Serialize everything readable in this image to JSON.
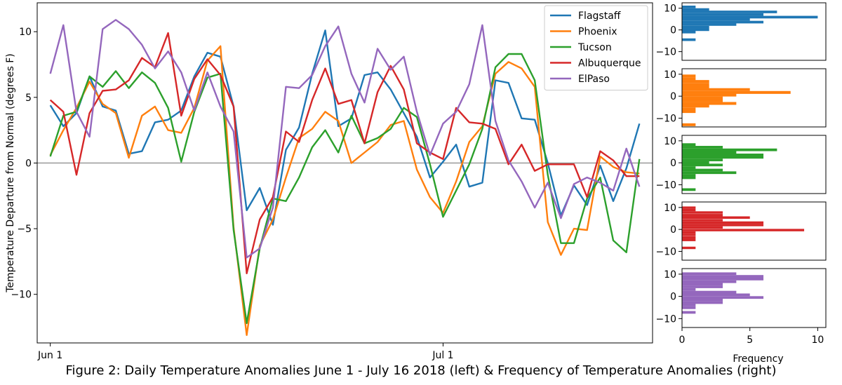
{
  "caption": "Figure 2: Daily Temperature Anomalies June 1 - July 16 2018 (left) & Frequency of Temperature Anomalies (right)",
  "chart_data": [
    {
      "type": "line",
      "title": "",
      "xlabel": "",
      "ylabel": "Temperature Departure from Normal (degrees F)",
      "x_tick_labels": [
        {
          "label": "Jun 1",
          "day": 0
        },
        {
          "label": "Jul 1",
          "day": 30
        }
      ],
      "x_range": [
        -1,
        46
      ],
      "ylim": [
        -13.7,
        12.2
      ],
      "y_ticks": [
        -10,
        -5,
        0,
        5,
        10
      ],
      "grid": false,
      "legend_position": "top-right",
      "colors": {
        "Flagstaff": "#1f77b4",
        "Phoenix": "#ff7f0e",
        "Tucson": "#2ca02c",
        "Albuquerque": "#d62728",
        "ElPaso": "#9467bd"
      },
      "x": [
        0,
        1,
        2,
        3,
        4,
        5,
        6,
        7,
        8,
        9,
        10,
        11,
        12,
        13,
        14,
        15,
        16,
        17,
        18,
        19,
        20,
        21,
        22,
        23,
        24,
        25,
        26,
        27,
        28,
        29,
        30,
        31,
        32,
        33,
        34,
        35,
        36,
        37,
        38,
        39,
        40,
        41,
        42,
        43,
        44,
        45
      ],
      "series": [
        {
          "name": "Flagstaff",
          "values": [
            4.4,
            2.8,
            3.8,
            6.6,
            4.3,
            4.0,
            0.7,
            0.9,
            3.1,
            3.3,
            4.0,
            6.6,
            8.4,
            8.1,
            4.3,
            -3.6,
            -1.9,
            -4.7,
            1.0,
            2.7,
            6.8,
            10.1,
            2.8,
            3.4,
            6.7,
            6.9,
            5.6,
            3.8,
            2.0,
            -1.1,
            0.1,
            1.4,
            -1.8,
            -1.5,
            6.3,
            6.1,
            3.4,
            3.3,
            0.0,
            -4.0,
            -1.7,
            -3.2,
            -0.2,
            -2.9,
            -0.4,
            3.0
          ]
        },
        {
          "name": "Phoenix",
          "values": [
            0.6,
            2.5,
            4.2,
            6.2,
            4.5,
            3.8,
            0.4,
            3.6,
            4.3,
            2.5,
            2.3,
            4.2,
            7.8,
            8.9,
            -4.9,
            -13.1,
            -6.3,
            -4.3,
            -1.1,
            1.9,
            2.6,
            3.9,
            3.2,
            0.0,
            0.8,
            1.6,
            2.9,
            3.2,
            -0.5,
            -2.6,
            -3.8,
            -1.4,
            1.6,
            2.8,
            6.8,
            7.7,
            7.2,
            5.8,
            -4.5,
            -7.0,
            -5.0,
            -5.1,
            0.5,
            -0.3,
            -0.7,
            -0.8
          ]
        },
        {
          "name": "Tucson",
          "values": [
            0.5,
            3.6,
            3.9,
            6.6,
            5.8,
            7.0,
            5.7,
            6.9,
            6.1,
            4.2,
            0.1,
            3.9,
            6.5,
            6.8,
            -5.1,
            -12.2,
            -6.5,
            -2.7,
            -2.9,
            -1.1,
            1.2,
            2.5,
            0.8,
            3.6,
            1.5,
            1.9,
            2.6,
            4.2,
            3.5,
            -0.1,
            -4.1,
            -2.1,
            -0.1,
            2.6,
            7.3,
            8.3,
            8.3,
            6.3,
            -0.9,
            -6.1,
            -6.1,
            -2.7,
            -1.1,
            -5.9,
            -6.8,
            0.3
          ]
        },
        {
          "name": "Albuquerque",
          "values": [
            4.8,
            3.9,
            -0.9,
            3.8,
            5.5,
            5.6,
            6.3,
            8.0,
            7.3,
            9.9,
            3.6,
            6.4,
            7.9,
            6.7,
            4.3,
            -8.4,
            -4.3,
            -2.6,
            2.4,
            1.6,
            4.8,
            7.2,
            4.5,
            4.8,
            1.5,
            5.4,
            7.4,
            5.6,
            1.5,
            0.8,
            0.3,
            4.2,
            3.1,
            3.0,
            2.6,
            -0.1,
            1.4,
            -0.6,
            -0.1,
            -0.1,
            -0.1,
            -2.6,
            0.9,
            0.2,
            -1.0,
            -1.0
          ]
        },
        {
          "name": "ElPaso",
          "values": [
            6.8,
            10.5,
            3.9,
            2.0,
            10.2,
            10.9,
            10.2,
            9.0,
            7.2,
            8.5,
            6.9,
            4.0,
            6.9,
            4.3,
            2.4,
            -7.2,
            -6.5,
            -3.4,
            5.8,
            5.7,
            6.7,
            8.9,
            10.4,
            6.8,
            4.6,
            8.7,
            7.1,
            8.1,
            3.9,
            0.6,
            3.0,
            3.9,
            6.0,
            10.5,
            3.2,
            0.2,
            -1.4,
            -3.4,
            -1.5,
            -4.2,
            -1.6,
            -1.1,
            -1.5,
            -2.1,
            1.1,
            -1.8
          ]
        }
      ]
    },
    {
      "type": "bar",
      "orientation": "horizontal",
      "series_name": "Flagstaff",
      "xlabel": "Frequency",
      "ylim": [
        -14,
        12.5
      ],
      "y_ticks": [
        -10,
        0,
        10
      ],
      "xlim": [
        0,
        10.6
      ],
      "x_ticks": [
        0,
        5,
        10
      ],
      "bin_centers": [
        10.6,
        9.4,
        8.3,
        7.1,
        5.9,
        4.8,
        3.6,
        2.5,
        1.3,
        0.1,
        -1.0,
        -2.2,
        -3.3,
        -4.5
      ],
      "counts": [
        1,
        2,
        7,
        6,
        10,
        5,
        6,
        4,
        2,
        2,
        1,
        0,
        0,
        1
      ]
    },
    {
      "type": "bar",
      "orientation": "horizontal",
      "series_name": "Phoenix",
      "xlabel": "Frequency",
      "ylim": [
        -14,
        12.5
      ],
      "y_ticks": [
        -10,
        0,
        10
      ],
      "xlim": [
        0,
        10.6
      ],
      "x_ticks": [
        0,
        5,
        10
      ],
      "bin_centers": [
        9.2,
        7.9,
        6.7,
        5.4,
        4.2,
        3.0,
        1.7,
        0.5,
        -0.8,
        -2.0,
        -3.3,
        -4.5,
        -5.8,
        -7.0,
        -13.0
      ],
      "counts": [
        1,
        1,
        2,
        2,
        2,
        5,
        8,
        4,
        3,
        3,
        4,
        2,
        1,
        1,
        1
      ]
    },
    {
      "type": "bar",
      "orientation": "horizontal",
      "series_name": "Tucson",
      "xlabel": "Frequency",
      "ylim": [
        -14,
        12.5
      ],
      "y_ticks": [
        -10,
        0,
        10
      ],
      "xlim": [
        0,
        10.6
      ],
      "x_ticks": [
        0,
        5,
        10
      ],
      "bin_centers": [
        8.3,
        7.1,
        5.9,
        4.8,
        3.6,
        2.5,
        1.3,
        0.1,
        -1.0,
        -2.2,
        -3.3,
        -4.5,
        -5.7,
        -6.8,
        -12.2
      ],
      "counts": [
        1,
        3,
        7,
        4,
        6,
        6,
        3,
        2,
        3,
        1,
        3,
        4,
        1,
        1,
        1
      ]
    },
    {
      "type": "bar",
      "orientation": "horizontal",
      "series_name": "Albuquerque",
      "xlabel": "Frequency",
      "ylim": [
        -14,
        12.5
      ],
      "y_ticks": [
        -10,
        0,
        10
      ],
      "xlim": [
        0,
        10.6
      ],
      "x_ticks": [
        0,
        5,
        10
      ],
      "bin_centers": [
        9.9,
        8.8,
        7.7,
        6.5,
        5.4,
        4.2,
        3.1,
        2.0,
        0.9,
        -0.3,
        -1.4,
        -2.5,
        -3.7,
        -4.8,
        -8.4
      ],
      "counts": [
        1,
        1,
        3,
        3,
        5,
        3,
        6,
        6,
        3,
        9,
        1,
        1,
        1,
        1,
        1
      ]
    },
    {
      "type": "bar",
      "orientation": "horizontal",
      "series_name": "ElPaso",
      "xlabel": "Frequency",
      "ylim": [
        -14,
        12.5
      ],
      "y_ticks": [
        -10,
        0,
        10
      ],
      "xlim": [
        0,
        10.6
      ],
      "x_ticks": [
        0,
        5,
        10
      ],
      "bin_centers": [
        10.2,
        9.0,
        7.8,
        6.6,
        5.5,
        4.3,
        3.1,
        1.9,
        0.7,
        -0.5,
        -1.6,
        -2.8,
        -3.9,
        -5.1,
        -7.2
      ],
      "counts": [
        4,
        6,
        6,
        4,
        3,
        3,
        1,
        4,
        5,
        6,
        3,
        3,
        1,
        1,
        1
      ]
    }
  ]
}
